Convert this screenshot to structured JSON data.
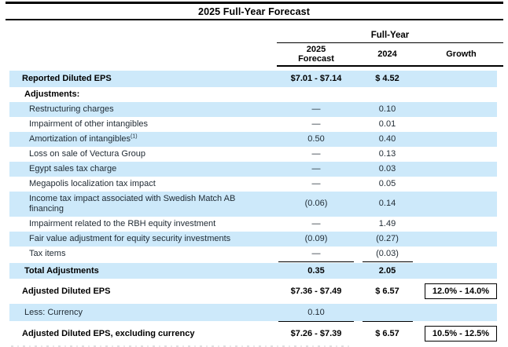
{
  "title": "2025 Full-Year Forecast",
  "header": {
    "group_label": "Full-Year",
    "col_2025": "2025\nForecast",
    "col_2024": "2024",
    "col_growth": "Growth"
  },
  "rows": [
    {
      "label": "Reported Diluted EPS",
      "forecast": "$7.01  -  $7.14",
      "y2024": "$ 4.52",
      "growth": ""
    },
    {
      "label": "Adjustments:",
      "forecast": "",
      "y2024": "",
      "growth": ""
    },
    {
      "label": "Restructuring charges",
      "forecast": "—",
      "y2024": "0.10",
      "growth": ""
    },
    {
      "label": "Impairment of other intangibles",
      "forecast": "—",
      "y2024": "0.01",
      "growth": ""
    },
    {
      "label": "Amortization of intangibles",
      "sup": "(1)",
      "forecast": "0.50",
      "y2024": "0.40",
      "growth": ""
    },
    {
      "label": "Loss on sale of Vectura Group",
      "forecast": "—",
      "y2024": "0.13",
      "growth": ""
    },
    {
      "label": "Egypt sales tax charge",
      "forecast": "—",
      "y2024": "0.03",
      "growth": ""
    },
    {
      "label": "Megapolis localization tax impact",
      "forecast": "—",
      "y2024": "0.05",
      "growth": ""
    },
    {
      "label": "Income tax impact associated with Swedish Match AB financing",
      "forecast": "(0.06)",
      "y2024": "0.14",
      "growth": ""
    },
    {
      "label": "Impairment related to the RBH equity investment",
      "forecast": "—",
      "y2024": "1.49",
      "growth": ""
    },
    {
      "label": "Fair value adjustment for equity security investments",
      "forecast": "(0.09)",
      "y2024": "(0.27)",
      "growth": ""
    },
    {
      "label": "Tax items",
      "forecast": "—",
      "y2024": "(0.03)",
      "growth": ""
    },
    {
      "label": "Total Adjustments",
      "forecast": "0.35",
      "y2024": "2.05",
      "growth": ""
    },
    {
      "label": "Adjusted Diluted EPS",
      "forecast": "$7.36  -  $7.49",
      "y2024": "$ 6.57",
      "growth": "12.0% - 14.0%"
    },
    {
      "label": "Less: Currency",
      "forecast": "0.10",
      "y2024": "",
      "growth": ""
    },
    {
      "label": "Adjusted Diluted EPS, excluding currency",
      "forecast": "$7.26  -  $7.39",
      "y2024": "$ 6.57",
      "growth": "10.5% - 12.5%"
    }
  ],
  "colors": {
    "row_shading": "#cde9fa",
    "rule": "#000000",
    "text": "#1f2a33"
  }
}
